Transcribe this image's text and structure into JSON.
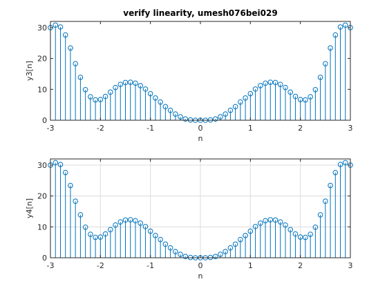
{
  "figure": {
    "background": "#ffffff",
    "stem_color": "#0072bd",
    "axis_color": "#262626",
    "grid_color": "#dcdcdc"
  },
  "chart_data": [
    {
      "type": "stem",
      "title": "verify linearity, umesh076bei029",
      "xlabel": "n",
      "ylabel": "y3[n]",
      "xlim": [
        -3,
        3
      ],
      "ylim": [
        0,
        32
      ],
      "xticks": [
        "-3",
        "-2",
        "-1",
        "0",
        "1",
        "2",
        "3"
      ],
      "yticks": [
        "0",
        "10",
        "20",
        "30"
      ],
      "grid": false,
      "n_start": -3.0,
      "n_step": 0.1,
      "values": [
        30.0,
        30.8,
        30.2,
        27.6,
        23.4,
        18.3,
        13.9,
        9.9,
        7.6,
        6.6,
        6.7,
        7.7,
        9.1,
        10.6,
        11.6,
        12.2,
        12.3,
        12.0,
        11.2,
        10.1,
        8.6,
        7.2,
        5.9,
        4.4,
        3.2,
        2.0,
        1.1,
        0.4,
        0.1,
        0.0,
        0.0,
        0.0,
        0.1,
        0.4,
        1.1,
        2.0,
        3.2,
        4.4,
        5.9,
        7.2,
        8.6,
        10.1,
        11.2,
        12.0,
        12.3,
        12.2,
        11.6,
        10.6,
        9.1,
        7.7,
        6.7,
        6.6,
        7.6,
        9.9,
        13.9,
        18.3,
        23.4,
        27.6,
        30.2,
        30.8,
        30.0
      ]
    },
    {
      "type": "stem",
      "title": "",
      "xlabel": "n",
      "ylabel": "y4[n]",
      "xlim": [
        -3,
        3
      ],
      "ylim": [
        0,
        32
      ],
      "xticks": [
        "-3",
        "-2",
        "-1",
        "0",
        "1",
        "2",
        "3"
      ],
      "yticks": [
        "0",
        "10",
        "20",
        "30"
      ],
      "grid": true,
      "n_start": -3.0,
      "n_step": 0.1,
      "values": [
        30.0,
        30.8,
        30.2,
        27.6,
        23.4,
        18.3,
        13.9,
        9.9,
        7.6,
        6.6,
        6.7,
        7.7,
        9.1,
        10.6,
        11.6,
        12.2,
        12.3,
        12.0,
        11.2,
        10.1,
        8.6,
        7.2,
        5.9,
        4.4,
        3.2,
        2.0,
        1.1,
        0.4,
        0.1,
        0.0,
        0.0,
        0.0,
        0.1,
        0.4,
        1.1,
        2.0,
        3.2,
        4.4,
        5.9,
        7.2,
        8.6,
        10.1,
        11.2,
        12.0,
        12.3,
        12.2,
        11.6,
        10.6,
        9.1,
        7.7,
        6.7,
        6.6,
        7.6,
        9.9,
        13.9,
        18.3,
        23.4,
        27.6,
        30.2,
        30.8,
        30.0
      ]
    }
  ]
}
